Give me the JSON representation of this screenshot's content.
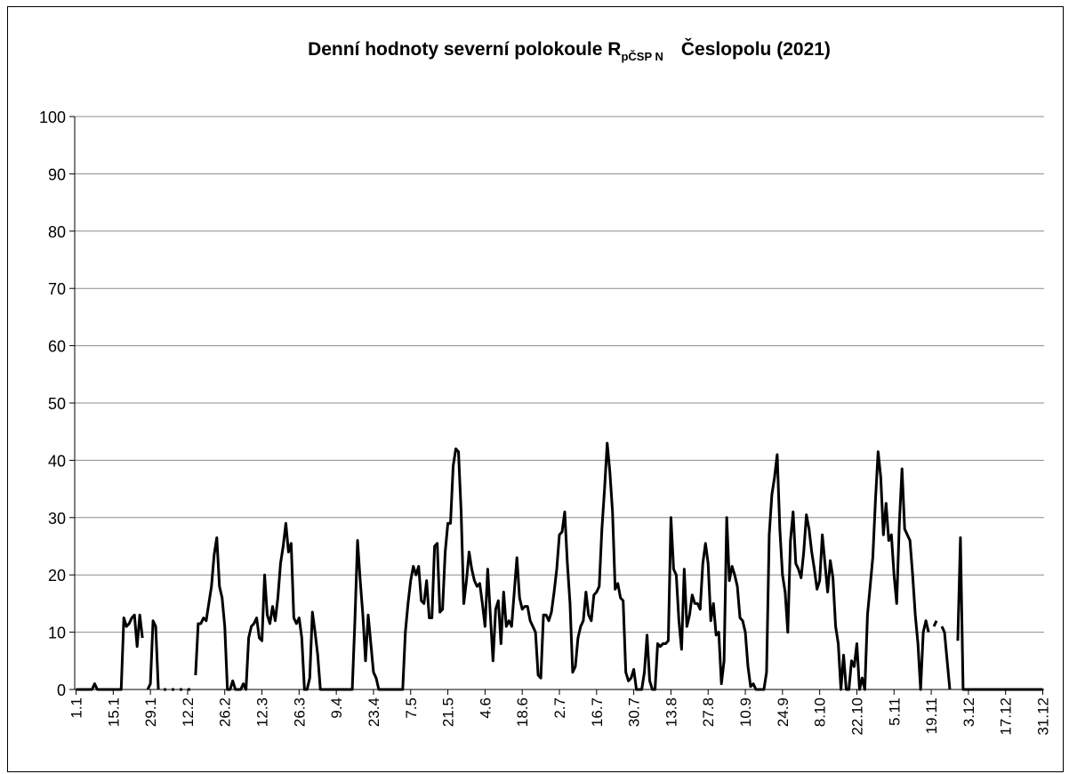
{
  "chart_data": {
    "type": "line",
    "title": "Denní hodnoty severní polokoule R",
    "title_subscript": "pČSP N",
    "title_end": "Česlopolu (2021)",
    "color": "#000000",
    "grid": true,
    "ylim": [
      0,
      100
    ],
    "yticks": [
      0,
      10,
      20,
      30,
      40,
      50,
      60,
      70,
      80,
      90,
      100
    ],
    "categories": [
      "1.1",
      null,
      null,
      null,
      null,
      null,
      null,
      null,
      null,
      null,
      null,
      null,
      null,
      null,
      "15.1",
      null,
      null,
      null,
      null,
      null,
      null,
      null,
      null,
      null,
      null,
      null,
      null,
      null,
      "29.1",
      null,
      null,
      null,
      null,
      null,
      null,
      null,
      null,
      null,
      null,
      null,
      null,
      null,
      "12.2",
      null,
      null,
      null,
      null,
      null,
      null,
      null,
      null,
      null,
      null,
      null,
      null,
      null,
      "26.2",
      null,
      null,
      null,
      null,
      null,
      null,
      null,
      null,
      null,
      null,
      null,
      null,
      null,
      "12.3",
      null,
      null,
      null,
      null,
      null,
      null,
      null,
      null,
      null,
      null,
      null,
      null,
      null,
      "26.3",
      null,
      null,
      null,
      null,
      null,
      null,
      null,
      null,
      null,
      null,
      null,
      null,
      null,
      "9.4",
      null,
      null,
      null,
      null,
      null,
      null,
      null,
      null,
      null,
      null,
      null,
      null,
      null,
      "23.4",
      null,
      null,
      null,
      null,
      null,
      null,
      null,
      null,
      null,
      null,
      null,
      null,
      null,
      "7.5",
      null,
      null,
      null,
      null,
      null,
      null,
      null,
      null,
      null,
      null,
      null,
      null,
      null,
      "21.5",
      null,
      null,
      null,
      null,
      null,
      null,
      null,
      null,
      null,
      null,
      null,
      null,
      null,
      "4.6",
      null,
      null,
      null,
      null,
      null,
      null,
      null,
      null,
      null,
      null,
      null,
      null,
      null,
      "18.6",
      null,
      null,
      null,
      null,
      null,
      null,
      null,
      null,
      null,
      null,
      null,
      null,
      null,
      "2.7",
      null,
      null,
      null,
      null,
      null,
      null,
      null,
      null,
      null,
      null,
      null,
      null,
      null,
      "16.7",
      null,
      null,
      null,
      null,
      null,
      null,
      null,
      null,
      null,
      null,
      null,
      null,
      null,
      "30.7",
      null,
      null,
      null,
      null,
      null,
      null,
      null,
      null,
      null,
      null,
      null,
      null,
      null,
      "13.8",
      null,
      null,
      null,
      null,
      null,
      null,
      null,
      null,
      null,
      null,
      null,
      null,
      null,
      "27.8",
      null,
      null,
      null,
      null,
      null,
      null,
      null,
      null,
      null,
      null,
      null,
      null,
      null,
      "10.9",
      null,
      null,
      null,
      null,
      null,
      null,
      null,
      null,
      null,
      null,
      null,
      null,
      null,
      "24.9",
      null,
      null,
      null,
      null,
      null,
      null,
      null,
      null,
      null,
      null,
      null,
      null,
      null,
      "8.10",
      null,
      null,
      null,
      null,
      null,
      null,
      null,
      null,
      null,
      null,
      null,
      null,
      null,
      "22.10",
      null,
      null,
      null,
      null,
      null,
      null,
      null,
      null,
      null,
      null,
      null,
      null,
      null,
      "5.11",
      null,
      null,
      null,
      null,
      null,
      null,
      null,
      null,
      null,
      null,
      null,
      null,
      null,
      "19.11",
      null,
      null,
      null,
      null,
      null,
      null,
      null,
      null,
      null,
      null,
      null,
      null,
      null,
      "3.12",
      null,
      null,
      null,
      null,
      null,
      null,
      null,
      null,
      null,
      null,
      null,
      null,
      null,
      "17.12",
      null,
      null,
      null,
      null,
      null,
      null,
      null,
      null,
      null,
      null,
      null,
      null,
      null,
      "31.12"
    ],
    "values": [
      0,
      0,
      0,
      0,
      0,
      0,
      0,
      1,
      0,
      0,
      0,
      0,
      0,
      0,
      0,
      0,
      0,
      0,
      12.5,
      11,
      11.5,
      12.5,
      13,
      7.5,
      13,
      9,
      null,
      0,
      1,
      12,
      11,
      0,
      null,
      0,
      0,
      null,
      0,
      0,
      null,
      0,
      0,
      null,
      0,
      0,
      null,
      2.5,
      11.5,
      11.5,
      12.5,
      12,
      15,
      18,
      23.5,
      26.5,
      18,
      16,
      11,
      0,
      0,
      1.5,
      0,
      0,
      0,
      1,
      0,
      9,
      11,
      11.5,
      12.5,
      9,
      8.5,
      20,
      13,
      11.5,
      14.5,
      12,
      16,
      22,
      25,
      29,
      24,
      25.5,
      12.5,
      11.5,
      12.5,
      9,
      0,
      0,
      2,
      13.5,
      10,
      6,
      0,
      0,
      0,
      0,
      0,
      0,
      0,
      0,
      0,
      0,
      0,
      0,
      0,
      12,
      26,
      19,
      13,
      5,
      13,
      8,
      3,
      2,
      0,
      0,
      0,
      0,
      0,
      0,
      0,
      0,
      0,
      0,
      10,
      15,
      19,
      21.5,
      20,
      21.5,
      15.5,
      15,
      19,
      12.5,
      12.5,
      25,
      25.5,
      13.5,
      14,
      24,
      29,
      29,
      39,
      42,
      41.5,
      31,
      15,
      19,
      24,
      21,
      19,
      18,
      18.5,
      15,
      11,
      21,
      13,
      5,
      14,
      15.5,
      8,
      17,
      11,
      12,
      11,
      17,
      23,
      16,
      14,
      14.5,
      14.5,
      12,
      11,
      10,
      2.5,
      2,
      13,
      13,
      12,
      13.5,
      17,
      21,
      27,
      27.5,
      31,
      22,
      15,
      3,
      4,
      9,
      11,
      12,
      17,
      13,
      12,
      16.5,
      17,
      18,
      28,
      35,
      43,
      38,
      31,
      17.5,
      18.5,
      16,
      15.5,
      3,
      1.5,
      2,
      3.5,
      0,
      0,
      0,
      3,
      9.5,
      1.5,
      0,
      0,
      8,
      7.5,
      8,
      8,
      8.5,
      30,
      21,
      20,
      12,
      7,
      21,
      11,
      13,
      16.5,
      15,
      15,
      14,
      22,
      25.5,
      22,
      12,
      15,
      9.5,
      10,
      1,
      5,
      30,
      19,
      21.5,
      20,
      18,
      12.5,
      12,
      10,
      4,
      0.5,
      1,
      0,
      0,
      0,
      0,
      3,
      27,
      34,
      37,
      41,
      28,
      20,
      17,
      10,
      26,
      31,
      22,
      21,
      19.5,
      24,
      30.5,
      28,
      24,
      21,
      17.5,
      19,
      27,
      22,
      17,
      22.5,
      19.5,
      11,
      8,
      0,
      6,
      0,
      0,
      5,
      4,
      8,
      0,
      2,
      0,
      13,
      18,
      23,
      33,
      41.5,
      37,
      27,
      32.5,
      26,
      27,
      20,
      15,
      29,
      38.5,
      28,
      27,
      26,
      20,
      13,
      8,
      0,
      10,
      12,
      10,
      null,
      11,
      12,
      null,
      11,
      10,
      5,
      0,
      null,
      null,
      8.5,
      26.5,
      0,
      0,
      0,
      0,
      0,
      0,
      0,
      0,
      0,
      0,
      0,
      0,
      0,
      0,
      0,
      0,
      0,
      0,
      0,
      0,
      0,
      0,
      0,
      0,
      0,
      0,
      0,
      0,
      0,
      0,
      0
    ]
  }
}
